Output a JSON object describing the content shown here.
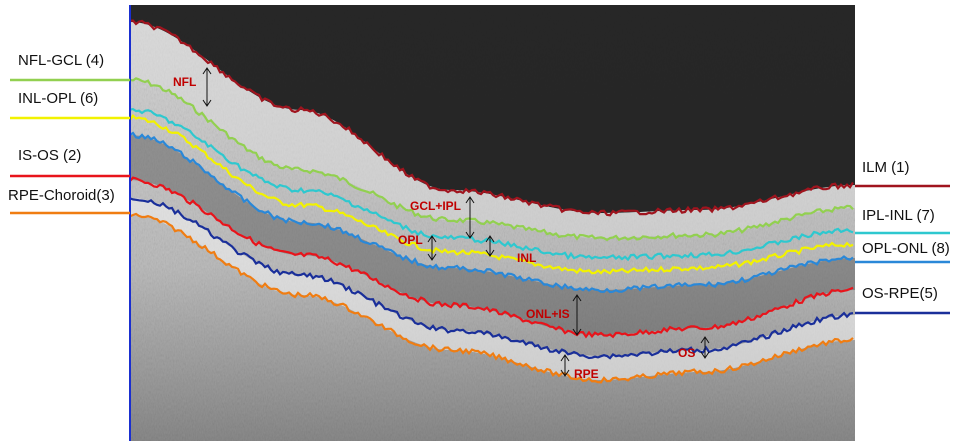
{
  "left_labels": [
    {
      "text": "NFL-GCL (4)",
      "color": "#92d050"
    },
    {
      "text": "INL-OPL (6)",
      "color": "#f2f200"
    },
    {
      "text": "IS-OS (2)",
      "color": "#e8141b"
    },
    {
      "text": "RPE-Choroid(3)",
      "color": "#f07d12"
    }
  ],
  "right_labels": [
    {
      "text": "ILM (1)",
      "color": "#a0141e"
    },
    {
      "text": "IPL-INL (7)",
      "color": "#2ec8cf"
    },
    {
      "text": "OPL-ONL (8)",
      "color": "#2a88d8"
    },
    {
      "text": "OS-RPE(5)",
      "color": "#1a2f9a"
    }
  ],
  "layer_labels": [
    "NFL",
    "GCL+IPL",
    "OPL",
    "INL",
    "ONL+IS",
    "OS",
    "RPE"
  ]
}
